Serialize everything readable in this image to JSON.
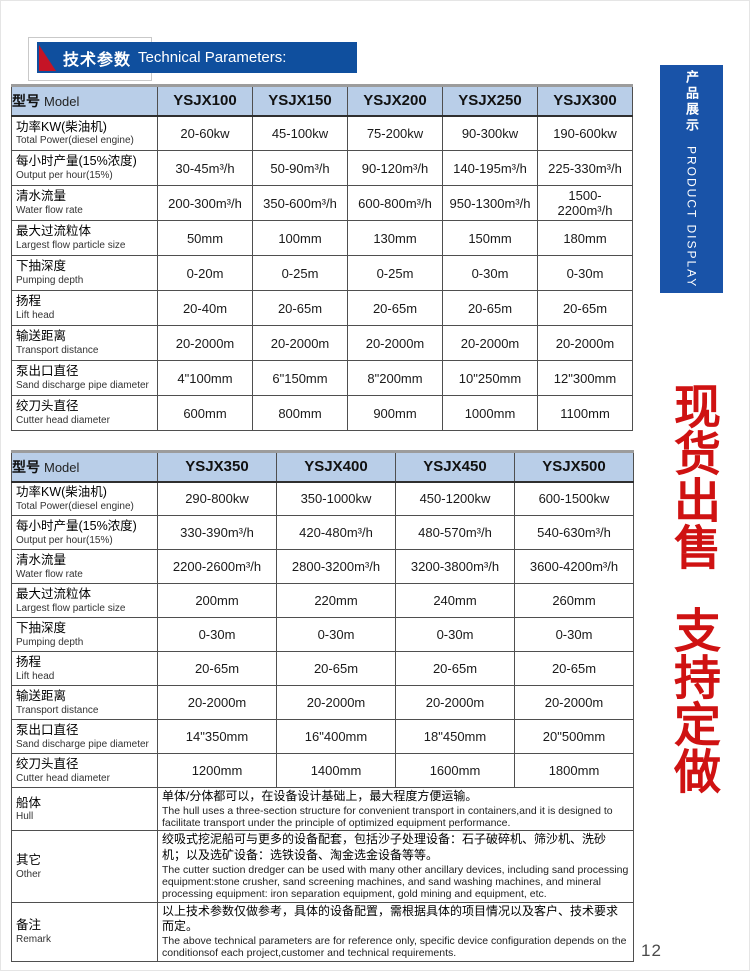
{
  "page": {
    "number": "12"
  },
  "header": {
    "title_zh": "技术参数",
    "title_en": "Technical Parameters:"
  },
  "side_banner": {
    "zh": "产品展示",
    "en": "PRODUCT DISPLAY"
  },
  "slogan": {
    "line1": "现货出售",
    "line2": "支持定做"
  },
  "colors": {
    "banner_blue": "#0f4f9e",
    "side_banner_blue": "#1953a8",
    "table_header_blue": "#b9cee8",
    "flag_red": "#c51426",
    "slogan_red": "#cf1212"
  },
  "table1": {
    "model_header": {
      "zh": "型号",
      "en": "Model"
    },
    "models": [
      "YSJX100",
      "YSJX150",
      "YSJX200",
      "YSJX250",
      "YSJX300"
    ],
    "rows": [
      {
        "label_zh": "功率KW(柴油机)",
        "label_en": "Total Power(diesel engine)",
        "values": [
          "20-60kw",
          "45-100kw",
          "75-200kw",
          "90-300kw",
          "190-600kw"
        ]
      },
      {
        "label_zh": "每小时产量(15%浓度)",
        "label_en": "Output per hour(15%)",
        "values": [
          "30-45m³/h",
          "50-90m³/h",
          "90-120m³/h",
          "140-195m³/h",
          "225-330m³/h"
        ]
      },
      {
        "label_zh": "清水流量",
        "label_en": "Water flow rate",
        "values": [
          "200-300m³/h",
          "350-600m³/h",
          "600-800m³/h",
          "950-1300m³/h",
          "1500-2200m³/h"
        ]
      },
      {
        "label_zh": "最大过流粒体",
        "label_en": "Largest flow particle size",
        "values": [
          "50mm",
          "100mm",
          "130mm",
          "150mm",
          "180mm"
        ]
      },
      {
        "label_zh": "下抽深度",
        "label_en": "Pumping depth",
        "values": [
          "0-20m",
          "0-25m",
          "0-25m",
          "0-30m",
          "0-30m"
        ]
      },
      {
        "label_zh": "扬程",
        "label_en": "Lift head",
        "values": [
          "20-40m",
          "20-65m",
          "20-65m",
          "20-65m",
          "20-65m"
        ]
      },
      {
        "label_zh": "输送距离",
        "label_en": "Transport distance",
        "values": [
          "20-2000m",
          "20-2000m",
          "20-2000m",
          "20-2000m",
          "20-2000m"
        ]
      },
      {
        "label_zh": "泵出口直径",
        "label_en": "Sand discharge pipe diameter",
        "values": [
          "4\"100mm",
          "6\"150mm",
          "8\"200mm",
          "10\"250mm",
          "12\"300mm"
        ]
      },
      {
        "label_zh": "绞刀头直径",
        "label_en": "Cutter head diameter",
        "values": [
          "600mm",
          "800mm",
          "900mm",
          "1000mm",
          "1100mm"
        ]
      }
    ]
  },
  "table2": {
    "model_header": {
      "zh": "型号",
      "en": "Model"
    },
    "models": [
      "YSJX350",
      "YSJX400",
      "YSJX450",
      "YSJX500"
    ],
    "rows": [
      {
        "label_zh": "功率KW(柴油机)",
        "label_en": "Total Power(diesel engine)",
        "values": [
          "290-800kw",
          "350-1000kw",
          "450-1200kw",
          "600-1500kw"
        ]
      },
      {
        "label_zh": "每小时产量(15%浓度)",
        "label_en": "Output per hour(15%)",
        "values": [
          "330-390m³/h",
          "420-480m³/h",
          "480-570m³/h",
          "540-630m³/h"
        ]
      },
      {
        "label_zh": "清水流量",
        "label_en": "Water flow rate",
        "values": [
          "2200-2600m³/h",
          "2800-3200m³/h",
          "3200-3800m³/h",
          "3600-4200m³/h"
        ]
      },
      {
        "label_zh": "最大过流粒体",
        "label_en": "Largest flow particle size",
        "values": [
          "200mm",
          "220mm",
          "240mm",
          "260mm"
        ]
      },
      {
        "label_zh": "下抽深度",
        "label_en": "Pumping depth",
        "values": [
          "0-30m",
          "0-30m",
          "0-30m",
          "0-30m"
        ]
      },
      {
        "label_zh": "扬程",
        "label_en": "Lift head",
        "values": [
          "20-65m",
          "20-65m",
          "20-65m",
          "20-65m"
        ]
      },
      {
        "label_zh": "输送距离",
        "label_en": "Transport distance",
        "values": [
          "20-2000m",
          "20-2000m",
          "20-2000m",
          "20-2000m"
        ]
      },
      {
        "label_zh": "泵出口直径",
        "label_en": "Sand discharge pipe diameter",
        "values": [
          "14\"350mm",
          "16\"400mm",
          "18\"450mm",
          "20\"500mm"
        ]
      },
      {
        "label_zh": "绞刀头直径",
        "label_en": "Cutter head diameter",
        "values": [
          "1200mm",
          "1400mm",
          "1600mm",
          "1800mm"
        ]
      }
    ]
  },
  "notes": [
    {
      "key": "hull",
      "label_zh": "船体",
      "label_en": "Hull",
      "text_zh": "单体/分体都可以，在设备设计基础上，最大程度方便运输。",
      "text_en": "The hull uses a three-section structure for convenient transport in containers,and it is designed to facilitate transport under the principle of optimized equipment performance."
    },
    {
      "key": "other",
      "label_zh": "其它",
      "label_en": "Other",
      "text_zh": "绞吸式挖泥船可与更多的设备配套，包括沙子处理设备：石子破碎机、筛沙机、洗砂机；以及选矿设备：选铁设备、淘金选金设备等等。",
      "text_en": "The cutter suction dredger can be used with many other ancillary devices, including sand processing equipment:stone crusher, sand screening machines, and sand washing machines, and mineral processing equipment: iron separation equipment, gold mining and equipment, etc."
    },
    {
      "key": "remark",
      "label_zh": "备注",
      "label_en": "Remark",
      "text_zh": "以上技术参数仅做参考，具体的设备配置，需根据具体的项目情况以及客户、技术要求而定。",
      "text_en": "The above technical parameters are for reference only, specific device configuration depends on the conditionsof each project,customer and technical requirements."
    }
  ]
}
